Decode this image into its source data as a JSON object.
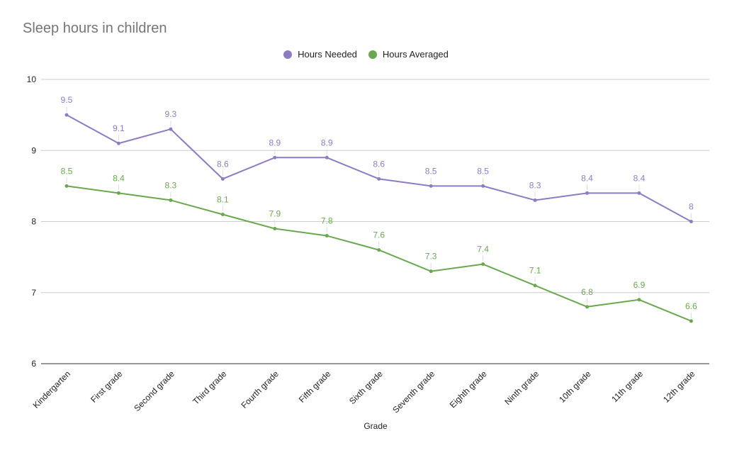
{
  "chart_data": {
    "type": "line",
    "title": "Sleep hours in children",
    "xlabel": "Grade",
    "ylabel": "",
    "ylim": [
      6,
      10
    ],
    "yticks": [
      6,
      7,
      8,
      9,
      10
    ],
    "grid": true,
    "legend_position": "top",
    "categories": [
      "Kindergarten",
      "First grade",
      "Second grade",
      "Third grade",
      "Fourth grade",
      "Fifth grade",
      "Sixth grade",
      "Seventh grade",
      "Eighth grade",
      "Ninth grade",
      "10th grade",
      "11th grade",
      "12th grade"
    ],
    "series": [
      {
        "name": "Hours Needed",
        "color": "#8e7cc3",
        "values": [
          9.5,
          9.1,
          9.3,
          8.6,
          8.9,
          8.9,
          8.6,
          8.5,
          8.5,
          8.3,
          8.4,
          8.4,
          8
        ]
      },
      {
        "name": "Hours Averaged",
        "color": "#6aa84f",
        "values": [
          8.5,
          8.4,
          8.3,
          8.1,
          7.9,
          7.8,
          7.6,
          7.3,
          7.4,
          7.1,
          6.8,
          6.9,
          6.6
        ]
      }
    ]
  }
}
